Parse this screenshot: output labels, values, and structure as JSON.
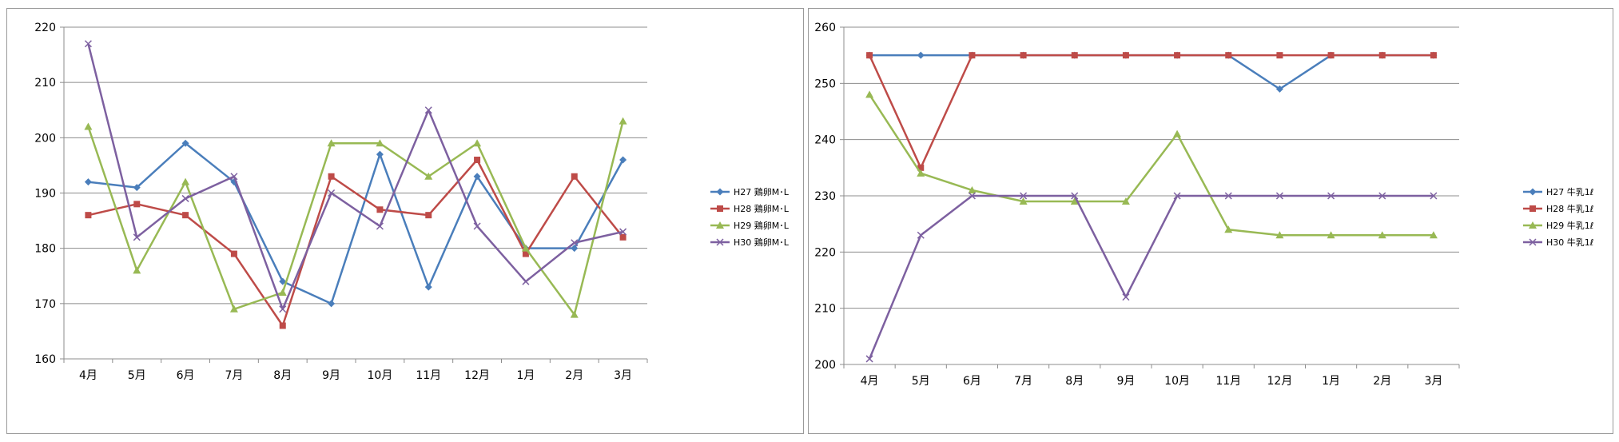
{
  "chart_data": [
    {
      "type": "line",
      "title": "",
      "xlabel": "",
      "ylabel": "",
      "categories": [
        "4月",
        "5月",
        "6月",
        "7月",
        "8月",
        "9月",
        "10月",
        "11月",
        "12月",
        "1月",
        "2月",
        "3月"
      ],
      "ylim": [
        160,
        220
      ],
      "yticks": [
        160,
        170,
        180,
        190,
        200,
        210,
        220
      ],
      "grid": true,
      "legend_position": "right",
      "series": [
        {
          "name": "H27 鶏卵M･L",
          "color": "#4a7ebb",
          "marker": "diamond",
          "values": [
            192,
            191,
            199,
            192,
            174,
            170,
            197,
            173,
            193,
            180,
            180,
            196
          ]
        },
        {
          "name": "H28 鶏卵M･L",
          "color": "#be4b48",
          "marker": "square",
          "values": [
            186,
            188,
            186,
            179,
            166,
            193,
            187,
            186,
            196,
            179,
            193,
            182
          ]
        },
        {
          "name": "H29 鶏卵M･L",
          "color": "#98b954",
          "marker": "triangle",
          "values": [
            202,
            176,
            192,
            169,
            172,
            199,
            199,
            193,
            199,
            180,
            168,
            203
          ]
        },
        {
          "name": "H30 鶏卵M･L",
          "color": "#7d60a0",
          "marker": "x",
          "values": [
            217,
            182,
            189,
            193,
            169,
            190,
            184,
            205,
            184,
            174,
            181,
            183
          ]
        }
      ]
    },
    {
      "type": "line",
      "title": "",
      "xlabel": "",
      "ylabel": "",
      "categories": [
        "4月",
        "5月",
        "6月",
        "7月",
        "8月",
        "9月",
        "10月",
        "11月",
        "12月",
        "1月",
        "2月",
        "3月"
      ],
      "ylim": [
        200,
        260
      ],
      "yticks": [
        200,
        210,
        220,
        230,
        240,
        250,
        260
      ],
      "grid": true,
      "legend_position": "right",
      "series": [
        {
          "name": "H27 牛乳1ℓ",
          "color": "#4a7ebb",
          "marker": "diamond",
          "values": [
            255,
            255,
            255,
            255,
            255,
            255,
            255,
            255,
            249,
            255,
            255,
            255
          ]
        },
        {
          "name": "H28 牛乳1ℓ",
          "color": "#be4b48",
          "marker": "square",
          "values": [
            255,
            235,
            255,
            255,
            255,
            255,
            255,
            255,
            255,
            255,
            255,
            255
          ]
        },
        {
          "name": "H29 牛乳1ℓ",
          "color": "#98b954",
          "marker": "triangle",
          "values": [
            248,
            234,
            231,
            229,
            229,
            229,
            241,
            224,
            223,
            223,
            223,
            223
          ]
        },
        {
          "name": "H30 牛乳1ℓ",
          "color": "#7d60a0",
          "marker": "x",
          "values": [
            201,
            223,
            230,
            230,
            230,
            212,
            230,
            230,
            230,
            230,
            230,
            230
          ]
        }
      ]
    }
  ]
}
